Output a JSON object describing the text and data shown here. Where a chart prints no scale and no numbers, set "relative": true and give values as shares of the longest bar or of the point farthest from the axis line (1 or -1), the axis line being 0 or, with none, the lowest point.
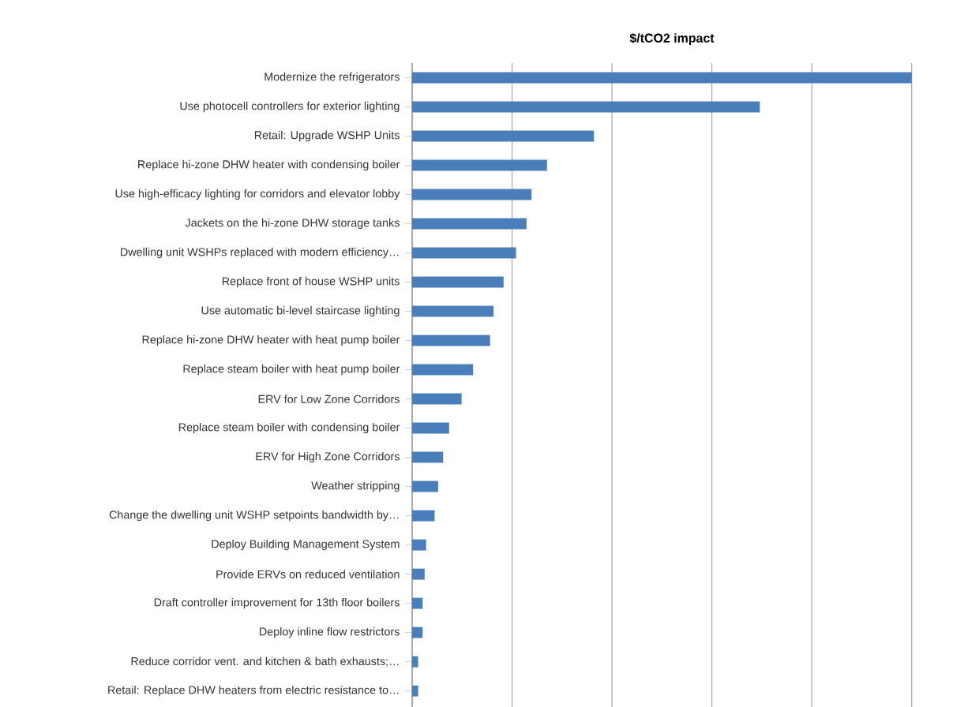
{
  "chart_data": {
    "type": "bar",
    "orientation": "horizontal",
    "relative": true,
    "title": "$/tCO2 impact",
    "color": "#4a7ebb",
    "grid": "x",
    "categories": [
      "Modernize the refrigerators",
      "Use photocell controllers for exterior lighting",
      "Retail: Upgrade WSHP Units",
      "Replace hi-zone DHW heater with condensing boiler",
      "Use high-efficacy lighting for corridors and elevator lobby",
      "Jackets on the hi-zone DHW storage tanks",
      "Dwelling unit WSHPs replaced with modern efficiency…",
      "Replace front of house WSHP units",
      "Use automatic bi-level staircase lighting",
      "Replace hi-zone DHW heater with heat pump boiler",
      "Replace steam boiler with heat pump boiler",
      "ERV for Low Zone Corridors",
      "Replace steam boiler with condensing boiler",
      "ERV for High Zone Corridors",
      "Weather stripping",
      "Change the dwelling unit WSHP setpoints bandwidth by…",
      "Deploy Building Management System",
      "Provide ERVs on reduced ventilation",
      "Draft controller improvement for 13th floor boilers",
      "Deploy inline flow restrictors",
      "Reduce corridor vent. and kitchen & bath exhausts;…",
      "Retail: Replace DHW heaters from electric resistance to…"
    ],
    "values": [
      1,
      0.696,
      0.364,
      0.27,
      0.239,
      0.229,
      0.208,
      0.183,
      0.163,
      0.156,
      0.122,
      0.099,
      0.074,
      0.062,
      0.052,
      0.045,
      0.028,
      0.025,
      0.021,
      0.021,
      0.012,
      0.012
    ]
  }
}
